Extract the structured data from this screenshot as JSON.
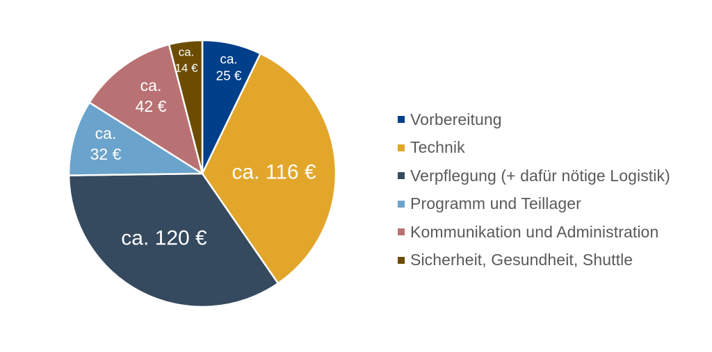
{
  "chart_data": {
    "type": "pie",
    "start_angle_deg": 0,
    "direction": "clockwise",
    "slices": [
      {
        "name": "Vorbereitung",
        "value": 25,
        "label_lines": [
          "ca.",
          "25 €"
        ],
        "color": "#003f8a"
      },
      {
        "name": "Technik",
        "value": 116,
        "label_lines": [
          "ca. 116 €"
        ],
        "color": "#e2a62b"
      },
      {
        "name": "Verpflegung (+ dafür nötige Logistik)",
        "value": 120,
        "label_lines": [
          "ca. 120 €"
        ],
        "color": "#354a5f"
      },
      {
        "name": "Programm und Teillager",
        "value": 32,
        "label_lines": [
          "ca.",
          "32 €"
        ],
        "color": "#6aa3cb"
      },
      {
        "name": "Kommunikation und Administration",
        "value": 42,
        "label_lines": [
          "ca.",
          "42 €"
        ],
        "color": "#b97273"
      },
      {
        "name": "Sicherheit, Gesundheit, Shuttle",
        "value": 14,
        "label_lines": [
          "ca.",
          "14 €"
        ],
        "color": "#6b4c00"
      }
    ],
    "legend_position": "right"
  },
  "legend": {
    "items": [
      {
        "label": "Vorbereitung",
        "color": "#003f8a"
      },
      {
        "label": "Technik",
        "color": "#e2a62b"
      },
      {
        "label": "Verpflegung (+ dafür nötige Logistik)",
        "color": "#354a5f"
      },
      {
        "label": "Programm und Teillager",
        "color": "#6aa3cb"
      },
      {
        "label": "Kommunikation und Administration",
        "color": "#b97273"
      },
      {
        "label": "Sicherheit, Gesundheit, Shuttle",
        "color": "#6b4c00"
      }
    ]
  }
}
